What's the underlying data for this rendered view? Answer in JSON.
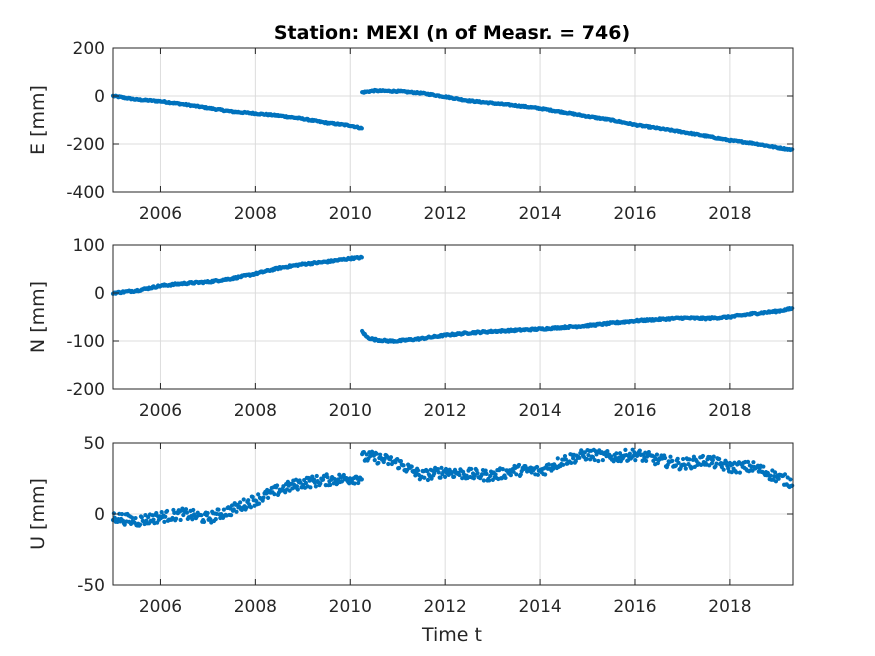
{
  "chart_data": {
    "type": "scatter",
    "title": "Station: MEXI (n of Measr. = 746)",
    "color": "#0072bd",
    "xlabel": "Time t",
    "xlim": [
      2005.0,
      2019.33
    ],
    "xticks": [
      2006,
      2008,
      2010,
      2012,
      2014,
      2016,
      2018
    ],
    "panels": [
      {
        "ylabel": "E [mm]",
        "ylim": [
          -400,
          200
        ],
        "yticks": [
          200,
          0,
          -200,
          -400
        ],
        "ytick_labels": [
          "200",
          "0",
          "-200",
          "-400"
        ],
        "segments": [
          {
            "x": [
              2005.0,
              2005.5,
              2006.0,
              2006.5,
              2007.0,
              2007.5,
              2008.0,
              2008.5,
              2009.0,
              2009.5,
              2010.0,
              2010.25
            ],
            "y": [
              0,
              -15,
              -22,
              -35,
              -50,
              -65,
              -73,
              -82,
              -95,
              -112,
              -123,
              -135
            ],
            "noise": 3
          },
          {
            "x": [
              2010.25,
              2010.5,
              2011.0,
              2011.5,
              2012.0,
              2012.5,
              2013.0,
              2013.5,
              2014.0,
              2014.5,
              2015.0,
              2015.5,
              2016.0,
              2016.5,
              2017.0,
              2017.5,
              2018.0,
              2018.5,
              2019.0,
              2019.33
            ],
            "y": [
              15,
              22,
              20,
              12,
              -3,
              -20,
              -30,
              -40,
              -52,
              -68,
              -85,
              -100,
              -120,
              -135,
              -150,
              -167,
              -185,
              -197,
              -215,
              -225
            ],
            "noise": 3
          }
        ]
      },
      {
        "ylabel": "N [mm]",
        "ylim": [
          -200,
          100
        ],
        "yticks": [
          100,
          0,
          -100,
          -200
        ],
        "ytick_labels": [
          "100",
          "0",
          "-100",
          "-200"
        ],
        "segments": [
          {
            "x": [
              2005.0,
              2005.5,
              2006.0,
              2006.5,
              2007.0,
              2007.5,
              2008.0,
              2008.5,
              2009.0,
              2009.5,
              2010.0,
              2010.25
            ],
            "y": [
              0,
              5,
              15,
              20,
              23,
              30,
              40,
              52,
              60,
              65,
              72,
              74
            ],
            "noise": 2
          },
          {
            "x": [
              2010.25,
              2010.35,
              2010.5,
              2010.8,
              2011.0,
              2011.5,
              2012.0,
              2012.5,
              2013.0,
              2014.0,
              2015.0,
              2016.0,
              2017.0,
              2017.5,
              2018.0,
              2018.5,
              2019.0,
              2019.33
            ],
            "y": [
              -80,
              -92,
              -97,
              -100,
              -100,
              -95,
              -88,
              -83,
              -80,
              -75,
              -68,
              -58,
              -52,
              -53,
              -50,
              -43,
              -38,
              -32
            ],
            "noise": 2
          }
        ]
      },
      {
        "ylabel": "U [mm]",
        "ylim": [
          -50,
          50
        ],
        "yticks": [
          50,
          0,
          -50
        ],
        "ytick_labels": [
          "50",
          "0",
          "-50"
        ],
        "segments": [
          {
            "x": [
              2005.0,
              2005.5,
              2006.0,
              2006.5,
              2007.0,
              2007.5,
              2008.0,
              2008.5,
              2009.0,
              2009.5,
              2010.0,
              2010.25
            ],
            "y": [
              -2,
              -5,
              -2,
              0,
              -3,
              3,
              10,
              17,
              22,
              24,
              25,
              26
            ],
            "noise": 4
          },
          {
            "x": [
              2010.25,
              2010.5,
              2011.0,
              2011.5,
              2012.0,
              2012.5,
              2013.0,
              2013.5,
              2014.0,
              2014.5,
              2015.0,
              2015.5,
              2016.0,
              2016.5,
              2017.0,
              2017.5,
              2018.0,
              2018.5,
              2019.0,
              2019.33
            ],
            "y": [
              40,
              40,
              36,
              27,
              30,
              28,
              27,
              31,
              30,
              38,
              42,
              40,
              42,
              38,
              35,
              38,
              33,
              33,
              26,
              22
            ],
            "noise": 4
          }
        ]
      }
    ]
  }
}
